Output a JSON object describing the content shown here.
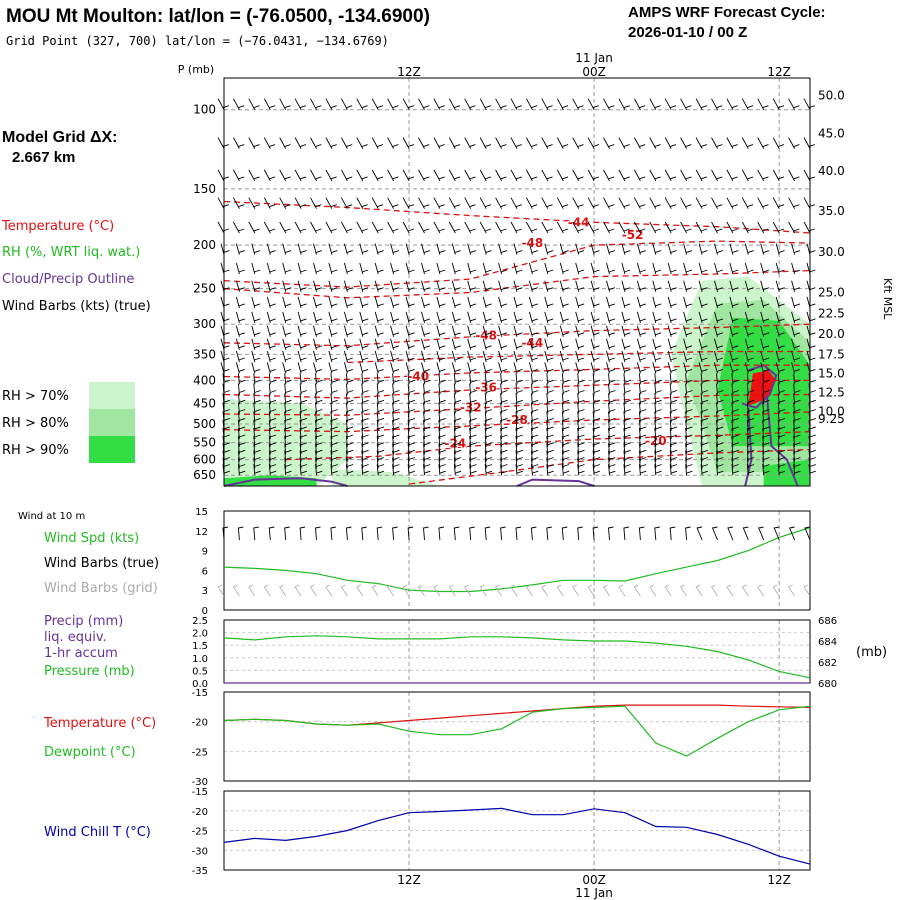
{
  "header": {
    "title": "MOU Mt Moulton:  lat/lon = (-76.0500, -134.6900)",
    "grid_point": "Grid Point (327, 700) lat/lon = (−76.0431, −134.6769)",
    "cycle_label": "AMPS WRF Forecast Cycle:",
    "cycle_value": "2026-01-10 / 00  Z"
  },
  "sidebar": {
    "model_grid_label": "Model Grid ΔX:",
    "model_grid_value": "2.667 km",
    "legend_temperature": "Temperature (°C)",
    "legend_rh": "RH (%, WRT liq. wat.)",
    "legend_cloud": "Cloud/Precip Outline",
    "legend_wind": "Wind Barbs (kts) (true)",
    "rh_levels": [
      {
        "label": "RH > 70%",
        "color": "#ccf5cc"
      },
      {
        "label": "RH > 80%",
        "color": "#a0e6a0"
      },
      {
        "label": "RH > 90%",
        "color": "#33dd44"
      }
    ],
    "wind10m": "Wind at 10 m",
    "wind_spd": "Wind Spd (kts)",
    "wind_barbs_true": "Wind Barbs (true)",
    "wind_barbs_grid": "Wind Barbs (grid)",
    "precip_1": "Precip (mm)",
    "precip_2": "liq. equiv.",
    "precip_3": "1-hr accum",
    "pressure": "Pressure (mb)",
    "pressure_unit": "(mb)",
    "temperature": "Temperature (°C)",
    "dewpoint": "Dewpoint (°C)",
    "windchill": "Wind Chill T (°C)"
  },
  "colors": {
    "temperature": "#dd1111",
    "rh": "#22bb22",
    "cloud": "#663399",
    "wind": "#000000",
    "wind_grid": "#aaaaaa",
    "windchill": "#0000aa",
    "grid": "#999999"
  },
  "chart_data": [
    {
      "type": "heatmap",
      "panel": "cross-section",
      "ylabel": "P (mb)",
      "ylabel_right": "Kft MSL",
      "x_date_label": "11 Jan",
      "x_ticks": [
        {
          "hour": 12,
          "label": "12Z"
        },
        {
          "hour": 24,
          "label": "00Z"
        },
        {
          "hour": 36,
          "label": "12Z"
        }
      ],
      "xlim": [
        0,
        38
      ],
      "ylim": [
        687,
        85
      ],
      "pressure_ticks": [
        100,
        150,
        200,
        250,
        300,
        350,
        400,
        450,
        500,
        550,
        600,
        650
      ],
      "height_ticks": [
        {
          "p": 93,
          "label": "50.0"
        },
        {
          "p": 113,
          "label": "45.0"
        },
        {
          "p": 137,
          "label": "40.0"
        },
        {
          "p": 168,
          "label": "35.0"
        },
        {
          "p": 207,
          "label": "30.0"
        },
        {
          "p": 255,
          "label": "25.0"
        },
        {
          "p": 284,
          "label": "22.5"
        },
        {
          "p": 315,
          "label": "20.0"
        },
        {
          "p": 350,
          "label": "17.5"
        },
        {
          "p": 386,
          "label": "15.0"
        },
        {
          "p": 426,
          "label": "12.5"
        },
        {
          "p": 469,
          "label": "10.0"
        },
        {
          "p": 487,
          "label": "9.25"
        }
      ],
      "temperature_contours": [
        {
          "label": "-52",
          "points": [
            [
              0,
              160
            ],
            [
              8,
              165
            ],
            [
              16,
              172
            ],
            [
              24,
              178
            ],
            [
              32,
              182
            ],
            [
              38,
              188
            ]
          ],
          "label_at": [
            26.5,
            190
          ]
        },
        {
          "label": "-48",
          "points": [
            [
              0,
              240
            ],
            [
              8,
              248
            ],
            [
              16,
              238
            ],
            [
              24,
              200
            ],
            [
              32,
              196
            ],
            [
              38,
              198
            ]
          ],
          "label_at": [
            20,
            198
          ]
        },
        {
          "label": "-44",
          "points": [
            [
              0,
              250
            ],
            [
              8,
              262
            ],
            [
              16,
              255
            ],
            [
              24,
              235
            ],
            [
              32,
              232
            ],
            [
              38,
              228
            ]
          ],
          "label_at": [
            23,
            178
          ]
        },
        {
          "label": "-48",
          "points": [
            [
              0,
              330
            ],
            [
              8,
              335
            ],
            [
              16,
              320
            ],
            [
              24,
              310
            ],
            [
              32,
              305
            ],
            [
              38,
              300
            ]
          ],
          "label_at": [
            17,
            318
          ]
        },
        {
          "label": "-44",
          "points": [
            [
              8,
              365
            ],
            [
              16,
              355
            ],
            [
              24,
              350
            ],
            [
              32,
              345
            ],
            [
              38,
              345
            ]
          ],
          "label_at": [
            20,
            330
          ]
        },
        {
          "label": "-40",
          "points": [
            [
              0,
              392
            ],
            [
              8,
              398
            ],
            [
              16,
              385
            ],
            [
              24,
              378
            ],
            [
              32,
              370
            ],
            [
              38,
              370
            ]
          ],
          "label_at": [
            12.6,
            392
          ]
        },
        {
          "label": "-36",
          "points": [
            [
              0,
              430
            ],
            [
              8,
              438
            ],
            [
              16,
              420
            ],
            [
              24,
              410
            ],
            [
              32,
              400
            ],
            [
              38,
              400
            ]
          ],
          "label_at": [
            17,
            415
          ]
        },
        {
          "label": "-32",
          "points": [
            [
              0,
              475
            ],
            [
              8,
              478
            ],
            [
              16,
              462
            ],
            [
              24,
              445
            ],
            [
              32,
              432
            ],
            [
              38,
              430
            ]
          ],
          "label_at": [
            16,
            460
          ]
        },
        {
          "label": "-28",
          "points": [
            [
              0,
              515
            ],
            [
              8,
              520
            ],
            [
              16,
              505
            ],
            [
              24,
              490
            ],
            [
              32,
              480
            ],
            [
              38,
              470
            ]
          ],
          "label_at": [
            19,
            490
          ]
        },
        {
          "label": "-24",
          "points": [
            [
              4,
              600
            ],
            [
              10,
              590
            ],
            [
              16,
              560
            ],
            [
              24,
              540
            ],
            [
              32,
              530
            ],
            [
              38,
              520
            ]
          ],
          "label_at": [
            15,
            552
          ]
        },
        {
          "label": "-20",
          "points": [
            [
              12,
              680
            ],
            [
              18,
              640
            ],
            [
              24,
              600
            ],
            [
              32,
              580
            ],
            [
              38,
              570
            ]
          ],
          "label_at": [
            28,
            545
          ]
        }
      ],
      "rh_regions": [
        {
          "level": 70,
          "points": [
            [
              0,
              440
            ],
            [
              5,
              450
            ],
            [
              8,
              500
            ],
            [
              8,
              600
            ],
            [
              6,
              687
            ],
            [
              0,
              687
            ]
          ]
        },
        {
          "level": 70,
          "points": [
            [
              7,
              630
            ],
            [
              11,
              640
            ],
            [
              14,
              687
            ],
            [
              7,
              687
            ]
          ]
        },
        {
          "level": 70,
          "points": [
            [
              29,
              350
            ],
            [
              31,
              240
            ],
            [
              34,
              235
            ],
            [
              38,
              300
            ],
            [
              38,
              687
            ],
            [
              31,
              687
            ],
            [
              30,
              500
            ]
          ]
        },
        {
          "level": 80,
          "points": [
            [
              30,
              400
            ],
            [
              32,
              270
            ],
            [
              35,
              265
            ],
            [
              38,
              330
            ],
            [
              38,
              640
            ],
            [
              32,
              640
            ],
            [
              31,
              500
            ]
          ]
        },
        {
          "level": 90,
          "points": [
            [
              32,
              420
            ],
            [
              33,
              290
            ],
            [
              36,
              295
            ],
            [
              38,
              370
            ],
            [
              38,
              560
            ],
            [
              33,
              560
            ]
          ]
        },
        {
          "level": 90,
          "points": [
            [
              35,
              620
            ],
            [
              38,
              600
            ],
            [
              38,
              687
            ],
            [
              35,
              687
            ]
          ]
        },
        {
          "level": 90,
          "points": [
            [
              0,
              660
            ],
            [
              3,
              650
            ],
            [
              6,
              660
            ],
            [
              6,
              687
            ],
            [
              0,
              687
            ]
          ]
        }
      ],
      "cloud_outline": [
        {
          "points": [
            [
              34,
              380
            ],
            [
              35,
              370
            ],
            [
              35.8,
              390
            ],
            [
              35.4,
              430
            ],
            [
              34.5,
              460
            ],
            [
              33.6,
              450
            ]
          ]
        },
        {
          "points": [
            [
              34,
              460
            ],
            [
              34.2,
              600
            ],
            [
              33.8,
              687
            ]
          ]
        },
        {
          "points": [
            [
              35.2,
              430
            ],
            [
              35.5,
              560
            ],
            [
              36.5,
              600
            ],
            [
              37.2,
              687
            ]
          ]
        },
        {
          "points": [
            [
              0,
              687
            ],
            [
              2,
              665
            ],
            [
              5,
              660
            ],
            [
              7,
              672
            ],
            [
              8,
              687
            ]
          ]
        },
        {
          "points": [
            [
              19,
              687
            ],
            [
              20,
              665
            ],
            [
              23,
              670
            ],
            [
              24,
              687
            ]
          ]
        }
      ],
      "cloud_fill": [
        {
          "points": [
            [
              34.3,
              386
            ],
            [
              35.3,
              380
            ],
            [
              35.8,
              400
            ],
            [
              35.2,
              440
            ],
            [
              34,
              455
            ]
          ]
        }
      ]
    },
    {
      "type": "line",
      "panel": "wind",
      "ylim": [
        0,
        15
      ],
      "y_ticks": [
        0,
        3,
        6,
        9,
        12,
        15
      ],
      "series": [
        {
          "name": "Wind Spd (kts)",
          "x": [
            0,
            2,
            4,
            6,
            8,
            10,
            12,
            14,
            16,
            18,
            20,
            22,
            24,
            26,
            28,
            30,
            32,
            34,
            36,
            38
          ],
          "y": [
            6.5,
            6.3,
            6,
            5.5,
            4.5,
            4,
            3,
            2.8,
            2.8,
            3.2,
            3.8,
            4.5,
            4.5,
            4.4,
            5.5,
            6.5,
            7.5,
            9,
            11,
            12.5
          ]
        }
      ]
    },
    {
      "type": "line",
      "panel": "precip-pressure",
      "ylim": [
        0,
        2.5
      ],
      "y_ticks": [
        0.0,
        0.5,
        1.0,
        1.5,
        2.0,
        2.5
      ],
      "y2lim": [
        680,
        686
      ],
      "y2_ticks": [
        680,
        682,
        684,
        686
      ],
      "series": [
        {
          "name": "Pressure (mb)",
          "x": [
            0,
            2,
            4,
            6,
            8,
            10,
            12,
            14,
            16,
            18,
            20,
            22,
            24,
            26,
            28,
            30,
            32,
            34,
            36,
            38
          ],
          "y": [
            684.3,
            684.1,
            684.4,
            684.5,
            684.4,
            684.2,
            684.2,
            684.2,
            684.4,
            684.4,
            684.3,
            684.1,
            684,
            684,
            683.8,
            683.5,
            683,
            682.2,
            681.1,
            680.5
          ]
        },
        {
          "name": "Precip (mm)",
          "x": [
            0,
            38
          ],
          "y": [
            0,
            0
          ]
        }
      ]
    },
    {
      "type": "line",
      "panel": "temperature",
      "ylim": [
        -30,
        -15
      ],
      "y_ticks": [
        -15,
        -20,
        -25,
        -30
      ],
      "series": [
        {
          "name": "Temperature (°C)",
          "x": [
            0,
            2,
            4,
            6,
            8,
            10,
            12,
            14,
            16,
            18,
            20,
            22,
            24,
            26,
            28,
            30,
            32,
            34,
            36,
            38
          ],
          "y": [
            -19.8,
            -19.6,
            -19.8,
            -20.4,
            -20.6,
            -20.2,
            -19.8,
            -19.4,
            -19,
            -18.6,
            -18.2,
            -17.8,
            -17.4,
            -17.2,
            -17.2,
            -17.2,
            -17.2,
            -17.4,
            -17.5,
            -17.6
          ]
        },
        {
          "name": "Dewpoint (°C)",
          "x": [
            0,
            2,
            4,
            6,
            8,
            10,
            12,
            14,
            16,
            18,
            20,
            22,
            24,
            26,
            28,
            30,
            32,
            34,
            36,
            38
          ],
          "y": [
            -19.8,
            -19.6,
            -19.8,
            -20.4,
            -20.6,
            -20.4,
            -21.6,
            -22.2,
            -22.2,
            -21.2,
            -18.4,
            -17.8,
            -17.6,
            -17.4,
            -23.6,
            -25.8,
            -22.8,
            -20,
            -18,
            -17.4
          ]
        }
      ]
    },
    {
      "type": "line",
      "panel": "windchill",
      "ylim": [
        -35,
        -15
      ],
      "y_ticks": [
        -15,
        -20,
        -25,
        -30,
        -35
      ],
      "x_date_label": "11 Jan",
      "series": [
        {
          "name": "Wind Chill T (°C)",
          "x": [
            0,
            2,
            4,
            6,
            8,
            10,
            12,
            14,
            16,
            18,
            20,
            22,
            24,
            26,
            28,
            30,
            32,
            34,
            36,
            38
          ],
          "y": [
            -28,
            -27,
            -27.5,
            -26.5,
            -25,
            -22.5,
            -20.5,
            -20.2,
            -19.8,
            -19.4,
            -21,
            -21,
            -19.5,
            -20.5,
            -24,
            -24.2,
            -26,
            -28.5,
            -31.5,
            -33.5
          ]
        }
      ]
    }
  ]
}
